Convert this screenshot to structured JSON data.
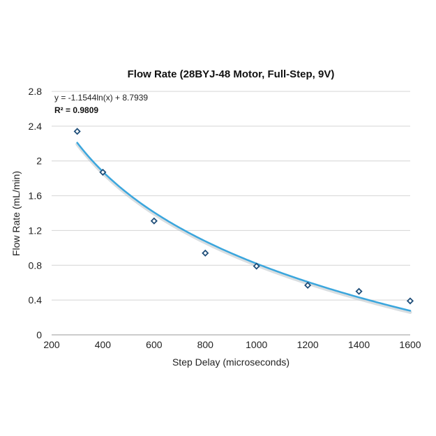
{
  "chart_data": {
    "type": "scatter",
    "title": "Flow Rate (28BYJ-48 Motor, Full-Step, 9V)",
    "xlabel": "Step Delay (microseconds)",
    "ylabel": "Flow Rate (mL/min)",
    "xlim": [
      200,
      1600
    ],
    "ylim": [
      0,
      2.8
    ],
    "xticks": [
      "200",
      "400",
      "600",
      "800",
      "1000",
      "1200",
      "1400",
      "1600"
    ],
    "yticks": [
      "0",
      "0.4",
      "0.8",
      "1.2",
      "1.6",
      "2",
      "2.4",
      "2.8"
    ],
    "grid": "horizontal",
    "series": [
      {
        "x": [
          300,
          400,
          600,
          800,
          1000,
          1200,
          1400,
          1600
        ],
        "y": [
          2.34,
          1.87,
          1.31,
          0.94,
          0.79,
          0.57,
          0.5,
          0.39
        ],
        "color": "#1f4e79"
      }
    ],
    "trendline": {
      "type": "logarithmic",
      "a": -1.1544,
      "b": 8.7939,
      "x_range": [
        300,
        1600
      ],
      "equation": "y = -1.1544ln(x) + 8.7939",
      "r_squared": "R² = 0.9809",
      "color": "#3aa6dd"
    }
  }
}
